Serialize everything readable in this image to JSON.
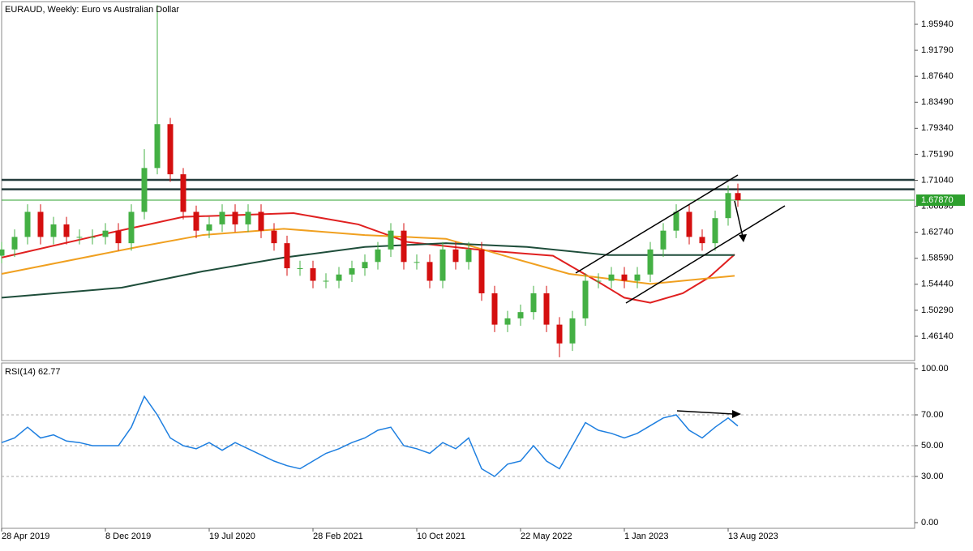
{
  "chart_data": [
    {
      "type": "candlestick",
      "title": "EURAUD, Weekly:  Euro vs Australian Dollar",
      "x": [
        0,
        4,
        8,
        12,
        16,
        20,
        24,
        28,
        32,
        36,
        40,
        44,
        48,
        52,
        56,
        60,
        64,
        68,
        72,
        76,
        80,
        84,
        88,
        92,
        96,
        100,
        104,
        108,
        112,
        116,
        120,
        124,
        128,
        132,
        136,
        140,
        144,
        148,
        152,
        156,
        160,
        164,
        168,
        172,
        176,
        180,
        184,
        188,
        192,
        196,
        200,
        204,
        208,
        212,
        216,
        220,
        224,
        227
      ],
      "open": [
        1.59,
        1.6,
        1.62,
        1.66,
        1.62,
        1.64,
        1.62,
        1.62,
        1.62,
        1.63,
        1.61,
        1.66,
        1.73,
        1.8,
        1.72,
        1.66,
        1.63,
        1.64,
        1.66,
        1.64,
        1.66,
        1.63,
        1.61,
        1.57,
        1.57,
        1.55,
        1.55,
        1.56,
        1.57,
        1.58,
        1.6,
        1.63,
        1.58,
        1.58,
        1.55,
        1.6,
        1.58,
        1.6,
        1.53,
        1.48,
        1.49,
        1.5,
        1.53,
        1.48,
        1.45,
        1.49,
        1.55,
        1.55,
        1.56,
        1.55,
        1.56,
        1.6,
        1.63,
        1.66,
        1.62,
        1.61,
        1.65,
        1.69
      ],
      "high": [
        1.612,
        1.632,
        1.672,
        1.672,
        1.652,
        1.652,
        1.632,
        1.632,
        1.642,
        1.642,
        1.672,
        1.76,
        1.99,
        1.81,
        1.73,
        1.67,
        1.652,
        1.672,
        1.672,
        1.672,
        1.672,
        1.642,
        1.622,
        1.582,
        1.582,
        1.562,
        1.572,
        1.582,
        1.592,
        1.612,
        1.642,
        1.642,
        1.592,
        1.592,
        1.612,
        1.612,
        1.612,
        1.612,
        1.542,
        1.502,
        1.512,
        1.542,
        1.542,
        1.492,
        1.502,
        1.562,
        1.562,
        1.572,
        1.572,
        1.572,
        1.612,
        1.642,
        1.672,
        1.672,
        1.632,
        1.662,
        1.702,
        1.705
      ],
      "low": [
        1.578,
        1.588,
        1.608,
        1.608,
        1.608,
        1.608,
        1.608,
        1.608,
        1.608,
        1.598,
        1.598,
        1.648,
        1.72,
        1.708,
        1.648,
        1.618,
        1.618,
        1.628,
        1.628,
        1.628,
        1.618,
        1.598,
        1.558,
        1.558,
        1.538,
        1.538,
        1.538,
        1.548,
        1.558,
        1.568,
        1.588,
        1.568,
        1.568,
        1.538,
        1.538,
        1.568,
        1.568,
        1.518,
        1.468,
        1.468,
        1.478,
        1.488,
        1.468,
        1.428,
        1.438,
        1.478,
        1.538,
        1.538,
        1.538,
        1.538,
        1.548,
        1.588,
        1.618,
        1.608,
        1.598,
        1.598,
        1.638,
        1.668
      ],
      "close": [
        1.6,
        1.62,
        1.66,
        1.62,
        1.64,
        1.62,
        1.62,
        1.62,
        1.63,
        1.61,
        1.66,
        1.73,
        1.8,
        1.72,
        1.66,
        1.63,
        1.64,
        1.66,
        1.64,
        1.66,
        1.63,
        1.61,
        1.57,
        1.57,
        1.55,
        1.55,
        1.56,
        1.57,
        1.58,
        1.6,
        1.63,
        1.58,
        1.58,
        1.55,
        1.6,
        1.58,
        1.6,
        1.53,
        1.48,
        1.49,
        1.5,
        1.53,
        1.48,
        1.45,
        1.49,
        1.55,
        1.55,
        1.56,
        1.55,
        1.56,
        1.6,
        1.63,
        1.66,
        1.62,
        1.61,
        1.65,
        1.69,
        1.6787
      ],
      "up_color": "#44b044",
      "down_color": "#d40f0f",
      "overlays": [
        {
          "color": "#e02020",
          "x": [
            0,
            32,
            56,
            90,
            110,
            125,
            150,
            170,
            185,
            192,
            200,
            210,
            218,
            226
          ],
          "values": [
            1.587,
            1.625,
            1.652,
            1.658,
            1.64,
            1.612,
            1.598,
            1.59,
            1.545,
            1.523,
            1.515,
            1.53,
            1.555,
            1.592
          ]
        },
        {
          "color": "#f0a020",
          "x": [
            0,
            42,
            62,
            87,
            112,
            137,
            157,
            175,
            200,
            226
          ],
          "values": [
            1.561,
            1.604,
            1.623,
            1.633,
            1.623,
            1.617,
            1.587,
            1.561,
            1.545,
            1.558
          ]
        },
        {
          "color": "#1e4d3a",
          "x": [
            0,
            37,
            62,
            87,
            112,
            137,
            162,
            187,
            226
          ],
          "values": [
            1.523,
            1.539,
            1.565,
            1.587,
            1.604,
            1.61,
            1.604,
            1.591,
            1.591
          ]
        }
      ],
      "levels": [
        1.711,
        1.696
      ],
      "level_color": "#243c3c",
      "price_line": {
        "value": 1.6787,
        "label": "1.67870"
      },
      "price_line_color": "#2ea02e",
      "xlim": [
        -0.5,
        281.5
      ],
      "xticks": [
        {
          "value": 0,
          "label": "28 Apr 2019"
        },
        {
          "value": 32,
          "label": "8 Dec 2019"
        },
        {
          "value": 64,
          "label": "19 Jul 2020"
        },
        {
          "value": 96,
          "label": "28 Feb 2021"
        },
        {
          "value": 128,
          "label": "10 Oct 2021"
        },
        {
          "value": 160,
          "label": "22 May 2022"
        },
        {
          "value": 192,
          "label": "1 Jan 2023"
        },
        {
          "value": 224,
          "label": "13 Aug 2023"
        }
      ],
      "ylim": [
        1.4226,
        1.9982
      ],
      "yticks": [
        {
          "value": 1.9594,
          "label": "1.95940"
        },
        {
          "value": 1.9179,
          "label": "1.91790"
        },
        {
          "value": 1.8764,
          "label": "1.87640"
        },
        {
          "value": 1.8349,
          "label": "1.83490"
        },
        {
          "value": 1.7934,
          "label": "1.79340"
        },
        {
          "value": 1.7519,
          "label": "1.75190"
        },
        {
          "value": 1.7104,
          "label": "1.71040"
        },
        {
          "value": 1.6689,
          "label": "1.66890"
        },
        {
          "value": 1.6274,
          "label": "1.62740"
        },
        {
          "value": 1.5859,
          "label": "1.58590"
        },
        {
          "value": 1.5444,
          "label": "1.54440"
        },
        {
          "value": 1.5029,
          "label": "1.50290"
        },
        {
          "value": 1.4614,
          "label": "1.46140"
        }
      ]
    },
    {
      "type": "line",
      "title": "RSI(14) 62.77",
      "x": [
        0,
        4,
        8,
        12,
        16,
        20,
        24,
        28,
        32,
        36,
        40,
        44,
        48,
        52,
        56,
        60,
        64,
        68,
        72,
        76,
        80,
        84,
        88,
        92,
        96,
        100,
        104,
        108,
        112,
        116,
        120,
        124,
        128,
        132,
        136,
        140,
        144,
        148,
        152,
        156,
        160,
        164,
        168,
        172,
        176,
        180,
        184,
        188,
        192,
        196,
        200,
        204,
        208,
        212,
        216,
        220,
        224,
        227
      ],
      "series": [
        {
          "color": "#1e7fe0",
          "values": [
            52,
            55,
            62,
            55,
            57,
            53,
            52,
            50,
            50,
            50,
            62,
            82,
            70,
            55,
            50,
            48,
            52,
            47,
            52,
            48,
            44,
            40,
            37,
            35,
            40,
            45,
            48,
            52,
            55,
            60,
            62,
            50,
            48,
            45,
            52,
            48,
            55,
            35,
            30,
            38,
            40,
            50,
            40,
            35,
            50,
            65,
            60,
            58,
            55,
            58,
            63,
            68,
            70,
            60,
            55,
            62,
            68,
            62.77
          ]
        }
      ],
      "levels": [
        70,
        50,
        30
      ],
      "xlim": [
        -0.5,
        281.5
      ],
      "ylim": [
        0,
        100
      ],
      "yticks": [
        {
          "value": 100,
          "label": "100.00"
        },
        {
          "value": 70,
          "label": "70.00"
        },
        {
          "value": 50,
          "label": "50.00"
        },
        {
          "value": 30,
          "label": "30.00"
        },
        {
          "value": 0,
          "label": "0.00"
        }
      ]
    }
  ]
}
